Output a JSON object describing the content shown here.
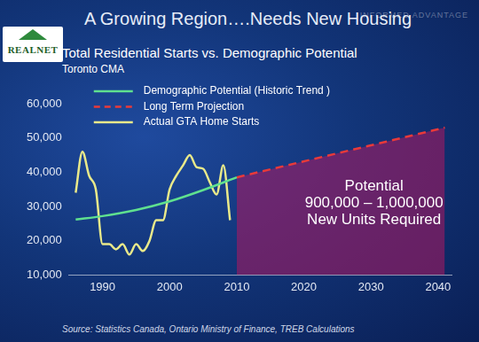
{
  "header": {
    "title": "A Growing Region….Needs New Housing",
    "logo": "REALNET",
    "tagline": "INFORMED ADVANTAGE"
  },
  "chart_data": {
    "type": "line",
    "title": "Total Residential Starts vs. Demographic Potential",
    "subtitle": "Toronto CMA",
    "xlim": [
      1985,
      2042
    ],
    "xticks": [
      1990,
      2000,
      2010,
      2020,
      2030,
      2040
    ],
    "ylim": [
      10000,
      60000
    ],
    "yticks": [
      {
        "value": 10000,
        "label": "10,000"
      },
      {
        "value": 20000,
        "label": "20,000"
      },
      {
        "value": 30000,
        "label": "30,000"
      },
      {
        "value": 40000,
        "label": "40,000"
      },
      {
        "value": 50000,
        "label": "50,000"
      },
      {
        "value": 60000,
        "label": "60,000"
      }
    ],
    "grid": false,
    "legend": "upper left",
    "series": [
      {
        "name": "Demographic Potential (Historic Trend )",
        "color": "#5fe08f",
        "line_style": "solid",
        "x": [
          1986,
          1990,
          1995,
          2000,
          2005,
          2010
        ],
        "values": [
          26200,
          27200,
          29000,
          31500,
          34800,
          38500
        ]
      },
      {
        "name": "Long Term Projection",
        "color": "#e83a3a",
        "line_style": "dashed",
        "type": "area",
        "x": [
          2010,
          2041
        ],
        "values": [
          38500,
          53000
        ]
      },
      {
        "name": "Actual GTA Home Starts",
        "color": "#e9e98a",
        "line_style": "solid",
        "x": [
          1986,
          1987,
          1988,
          1989,
          1990,
          1991,
          1992,
          1993,
          1994,
          1995,
          1996,
          1997,
          1998,
          1999,
          2000,
          2001,
          2002,
          2003,
          2004,
          2005,
          2006,
          2007,
          2008,
          2009
        ],
        "values": [
          34000,
          46000,
          39000,
          35000,
          19000,
          19000,
          17500,
          19000,
          16000,
          19000,
          17000,
          20000,
          26000,
          26000,
          35000,
          39000,
          42000,
          45000,
          41500,
          41000,
          37000,
          33500,
          42000,
          26000
        ]
      }
    ],
    "annotations": [
      {
        "text": [
          "Potential",
          "900,000 – 1,000,000",
          "New Units Required"
        ]
      }
    ],
    "source": "Source: Statistics Canada, Ontario Ministry of Finance, TREB Calculations"
  }
}
